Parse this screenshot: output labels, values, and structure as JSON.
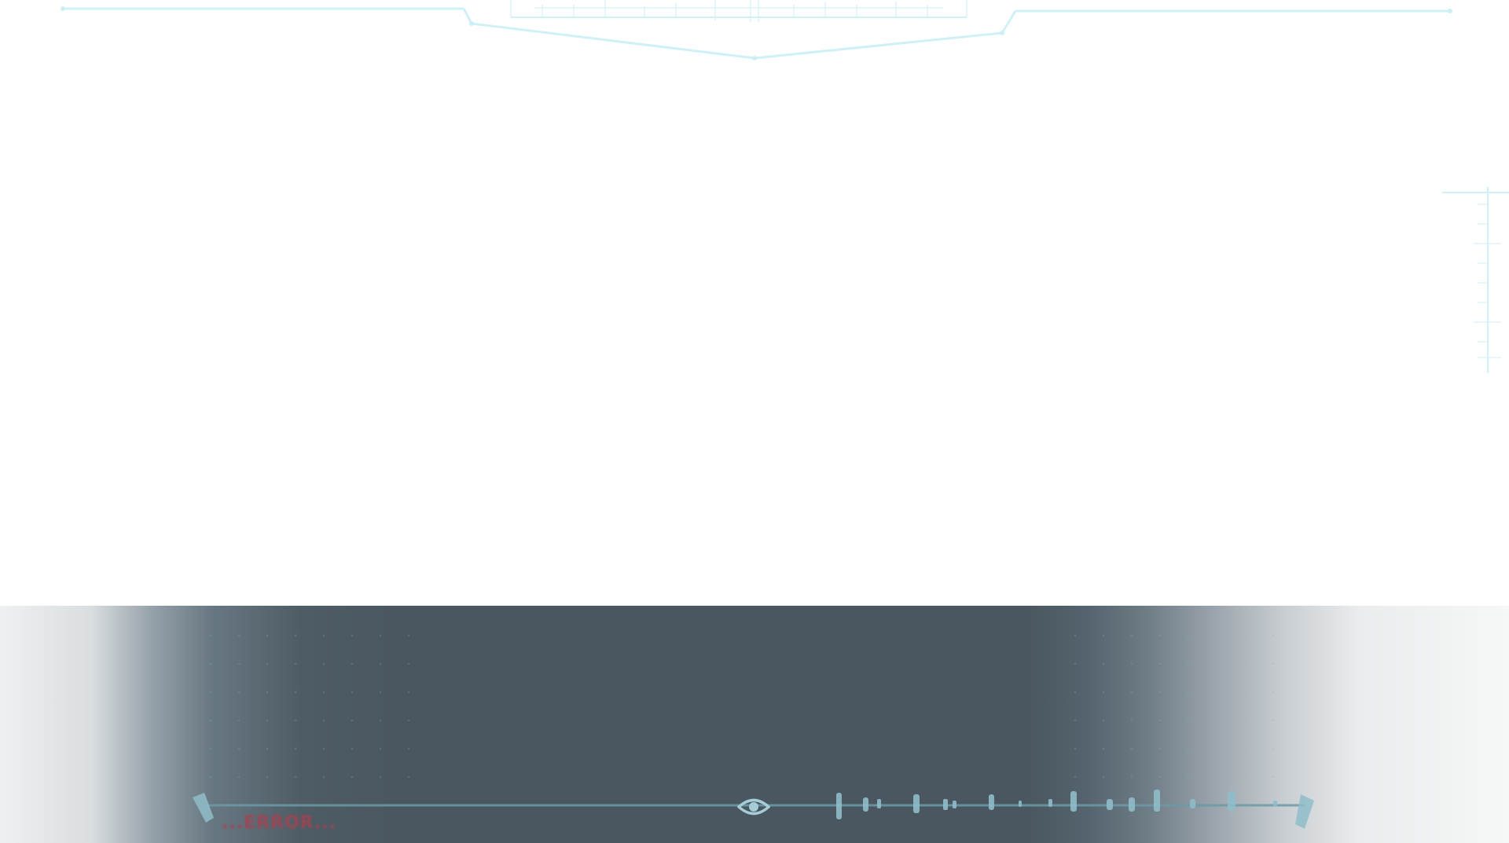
{
  "hud": {
    "status_text": "...ERROR...",
    "accent_color": "#bfeaf3",
    "track_color": "#6c9aa8",
    "status_color": "#a8414f"
  },
  "icons": {
    "view_toggle": "eye-icon"
  }
}
